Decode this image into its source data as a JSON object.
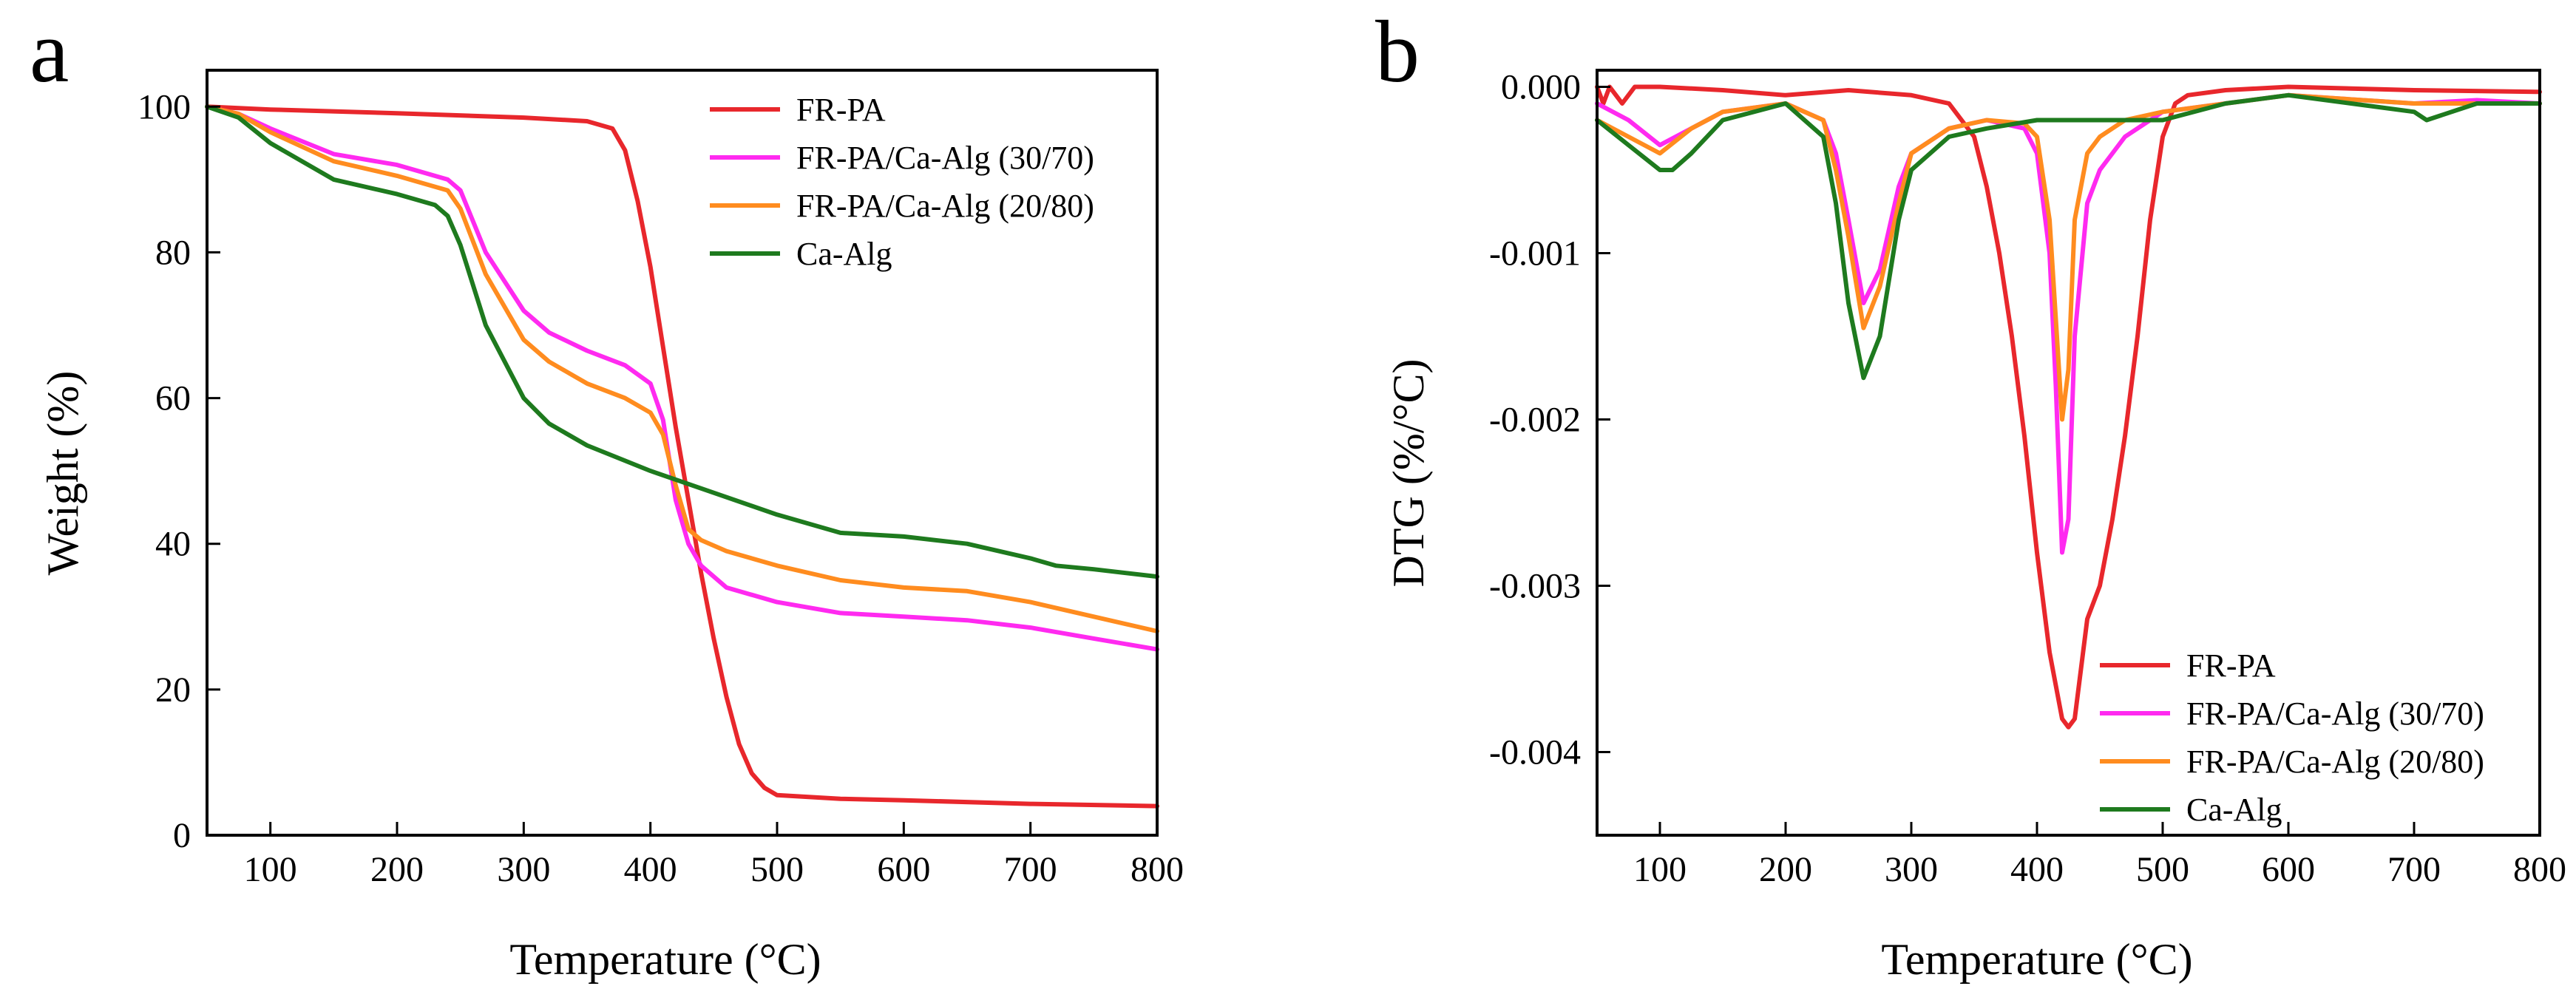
{
  "chart_data": [
    {
      "type": "line",
      "panel_label": "a",
      "xlabel": "Temperature (°C)",
      "ylabel": "Weight (%)",
      "xlim": [
        50,
        800
      ],
      "ylim": [
        0,
        105
      ],
      "xticks": [
        100,
        200,
        300,
        400,
        500,
        600,
        700,
        800
      ],
      "yticks": [
        0,
        20,
        40,
        60,
        80,
        100
      ],
      "legend_position": "top-right",
      "grid": false,
      "series": [
        {
          "name": "FR-PA",
          "color": "#e8272c",
          "x": [
            50,
            100,
            200,
            300,
            350,
            370,
            380,
            390,
            400,
            410,
            420,
            430,
            440,
            450,
            460,
            470,
            480,
            490,
            500,
            550,
            600,
            700,
            800
          ],
          "y": [
            100,
            99.6,
            99.1,
            98.5,
            98.0,
            97.0,
            94.0,
            87.0,
            78.0,
            67.0,
            56.0,
            46.0,
            36.0,
            27.0,
            19.0,
            12.5,
            8.5,
            6.5,
            5.5,
            5.0,
            4.8,
            4.3,
            4.0
          ]
        },
        {
          "name": "FR-PA/Ca-Alg (30/70)",
          "color": "#ff2af0",
          "x": [
            50,
            75,
            100,
            150,
            200,
            240,
            250,
            270,
            300,
            320,
            350,
            380,
            400,
            410,
            420,
            430,
            440,
            460,
            500,
            550,
            600,
            650,
            700,
            750,
            800
          ],
          "y": [
            100,
            99,
            97,
            93.5,
            92,
            90,
            88.5,
            80,
            72,
            69,
            66.5,
            64.5,
            62,
            57,
            46,
            40,
            37,
            34,
            32,
            30.5,
            30,
            29.5,
            28.5,
            27,
            25.5
          ]
        },
        {
          "name": "FR-PA/Ca-Alg (20/80)",
          "color": "#ff8c1f",
          "x": [
            50,
            75,
            100,
            150,
            200,
            240,
            250,
            270,
            300,
            320,
            350,
            380,
            400,
            410,
            420,
            430,
            440,
            460,
            500,
            550,
            600,
            650,
            700,
            750,
            800
          ],
          "y": [
            100,
            99,
            96.5,
            92.5,
            90.5,
            88.5,
            86,
            77,
            68,
            65,
            62,
            60,
            58,
            55,
            48,
            42,
            40.5,
            39,
            37,
            35,
            34,
            33.5,
            32,
            30,
            28
          ]
        },
        {
          "name": "Ca-Alg",
          "color": "#1e7a1e",
          "x": [
            50,
            75,
            100,
            150,
            200,
            230,
            240,
            250,
            270,
            300,
            320,
            350,
            400,
            450,
            500,
            550,
            600,
            650,
            700,
            720,
            750,
            800
          ],
          "y": [
            100,
            98.5,
            95,
            90,
            88,
            86.5,
            85,
            81,
            70,
            60,
            56.5,
            53.5,
            50,
            47,
            44,
            41.5,
            41,
            40,
            38,
            37,
            36.5,
            35.5
          ]
        }
      ]
    },
    {
      "type": "line",
      "panel_label": "b",
      "xlabel": "Temperature (°C)",
      "ylabel": "DTG (%/°C)",
      "xlim": [
        50,
        800
      ],
      "ylim": [
        -0.0045,
        0.0001
      ],
      "xticks": [
        100,
        200,
        300,
        400,
        500,
        600,
        700,
        800
      ],
      "yticks": [
        0.0,
        -0.001,
        -0.002,
        -0.003,
        -0.004
      ],
      "ytick_labels": [
        "0.000",
        "-0.001",
        "-0.002",
        "-0.003",
        "-0.004"
      ],
      "legend_position": "bottom-right",
      "grid": false,
      "series": [
        {
          "name": "FR-PA",
          "color": "#e8272c",
          "x": [
            50,
            55,
            60,
            70,
            80,
            100,
            150,
            200,
            250,
            300,
            330,
            350,
            360,
            370,
            380,
            390,
            400,
            410,
            420,
            425,
            430,
            435,
            440,
            450,
            460,
            470,
            480,
            490,
            500,
            510,
            520,
            550,
            600,
            700,
            800
          ],
          "y": [
            0.0,
            -0.0001,
            0.0,
            -0.0001,
            0.0,
            0.0,
            -2e-05,
            -5e-05,
            -2e-05,
            -5e-05,
            -0.0001,
            -0.0003,
            -0.0006,
            -0.001,
            -0.0015,
            -0.0021,
            -0.0028,
            -0.0034,
            -0.0038,
            -0.00385,
            -0.0038,
            -0.0035,
            -0.0032,
            -0.003,
            -0.0026,
            -0.0021,
            -0.0015,
            -0.0008,
            -0.0003,
            -0.0001,
            -5e-05,
            -2e-05,
            0.0,
            -2e-05,
            -3e-05
          ]
        },
        {
          "name": "FR-PA/Ca-Alg (30/70)",
          "color": "#ff2af0",
          "x": [
            50,
            75,
            100,
            125,
            150,
            200,
            230,
            240,
            250,
            262,
            275,
            290,
            300,
            330,
            360,
            390,
            400,
            410,
            415,
            420,
            425,
            430,
            440,
            450,
            470,
            500,
            550,
            600,
            700,
            750,
            800
          ],
          "y": [
            -0.0001,
            -0.0002,
            -0.00035,
            -0.00025,
            -0.00015,
            -0.0001,
            -0.0002,
            -0.0004,
            -0.0008,
            -0.0013,
            -0.0011,
            -0.0006,
            -0.0004,
            -0.00025,
            -0.0002,
            -0.00025,
            -0.0004,
            -0.001,
            -0.0018,
            -0.0028,
            -0.0026,
            -0.0015,
            -0.0007,
            -0.0005,
            -0.0003,
            -0.00015,
            -0.0001,
            -5e-05,
            -0.0001,
            -8e-05,
            -0.0001
          ]
        },
        {
          "name": "FR-PA/Ca-Alg (20/80)",
          "color": "#ff8c1f",
          "x": [
            50,
            75,
            100,
            125,
            150,
            200,
            230,
            240,
            250,
            262,
            275,
            290,
            300,
            330,
            360,
            390,
            400,
            410,
            415,
            420,
            425,
            430,
            440,
            450,
            470,
            500,
            550,
            600,
            700,
            750,
            800
          ],
          "y": [
            -0.0002,
            -0.0003,
            -0.0004,
            -0.00025,
            -0.00015,
            -0.0001,
            -0.0002,
            -0.0005,
            -0.0009,
            -0.00145,
            -0.0012,
            -0.0007,
            -0.0004,
            -0.00025,
            -0.0002,
            -0.00022,
            -0.0003,
            -0.0008,
            -0.0014,
            -0.002,
            -0.0017,
            -0.0008,
            -0.0004,
            -0.0003,
            -0.0002,
            -0.00015,
            -0.0001,
            -5e-05,
            -0.0001,
            -0.0001,
            -0.0001
          ]
        },
        {
          "name": "Ca-Alg",
          "color": "#1e7a1e",
          "x": [
            50,
            75,
            100,
            110,
            125,
            150,
            200,
            230,
            240,
            250,
            262,
            275,
            290,
            300,
            330,
            360,
            400,
            450,
            500,
            550,
            600,
            650,
            700,
            710,
            750,
            800
          ],
          "y": [
            -0.0002,
            -0.00035,
            -0.0005,
            -0.0005,
            -0.0004,
            -0.0002,
            -0.0001,
            -0.0003,
            -0.0007,
            -0.0013,
            -0.00175,
            -0.0015,
            -0.0008,
            -0.0005,
            -0.0003,
            -0.00025,
            -0.0002,
            -0.0002,
            -0.0002,
            -0.0001,
            -5e-05,
            -0.0001,
            -0.00015,
            -0.0002,
            -0.0001,
            -0.0001
          ]
        }
      ]
    }
  ]
}
